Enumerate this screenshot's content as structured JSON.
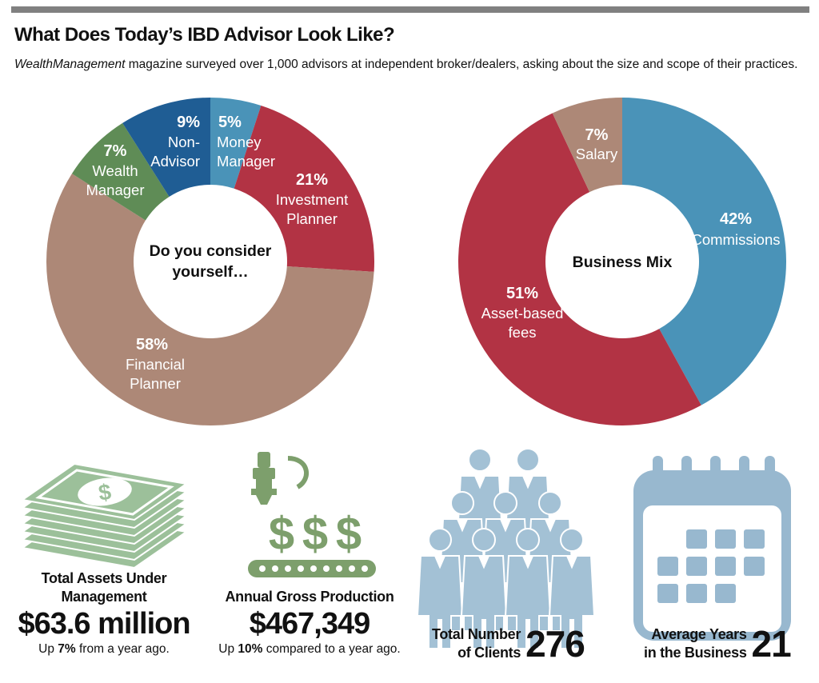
{
  "header": {
    "title": "What Does Today’s IBD Advisor Look Like?",
    "subtitle_italic": "WealthManagement",
    "subtitle_rest": " magazine surveyed over 1,000 advisors at independent broker/dealers, asking about the size and scope of their practices."
  },
  "chart_data": [
    {
      "type": "pie",
      "title": "Do you consider yourself…",
      "unit": "%",
      "slices": [
        {
          "label": "Money Manager",
          "value": 5,
          "color": "#4a93b8"
        },
        {
          "label": "Investment Planner",
          "value": 21,
          "color": "#b23344"
        },
        {
          "label": "Financial Planner",
          "value": 58,
          "color": "#ad8877"
        },
        {
          "label": "Wealth Manager",
          "value": 7,
          "color": "#5f8c56"
        },
        {
          "label": "Non-Advisor",
          "value": 9,
          "color": "#1f5d94"
        }
      ]
    },
    {
      "type": "pie",
      "title": "Business Mix",
      "unit": "%",
      "slices": [
        {
          "label": "Commissions",
          "value": 42,
          "color": "#4a93b8"
        },
        {
          "label": "Asset-based fees",
          "value": 51,
          "color": "#b23344"
        },
        {
          "label": "Salary",
          "value": 7,
          "color": "#ad8877"
        }
      ]
    }
  ],
  "labels": {
    "d1": {
      "money": {
        "pct": "5%",
        "line1": "Money",
        "line2": "Manager"
      },
      "invest": {
        "pct": "21%",
        "line1": "Investment",
        "line2": "Planner"
      },
      "fin": {
        "pct": "58%",
        "line1": "Financial",
        "line2": "Planner"
      },
      "wealth": {
        "pct": "7%",
        "line1": "Wealth",
        "line2": "Manager"
      },
      "non": {
        "pct": "9%",
        "line1": "Non-",
        "line2": "Advisor"
      },
      "center1": "Do you consider",
      "center2": "yourself…"
    },
    "d2": {
      "comm": {
        "pct": "42%",
        "line1": "Commissions"
      },
      "asset": {
        "pct": "51%",
        "line1": "Asset-based",
        "line2": "fees"
      },
      "salary": {
        "pct": "7%",
        "line1": "Salary"
      },
      "center1": "Business Mix"
    }
  },
  "stats": {
    "aum": {
      "label1": "Total Assets Under",
      "label2": "Management",
      "value": "$63.6 million",
      "note_pre": "Up ",
      "note_bold": "7%",
      "note_post": " from a year ago."
    },
    "gross": {
      "label": "Annual Gross Production",
      "value": "$467,349",
      "note_pre": "Up ",
      "note_bold": "10%",
      "note_post": " compared to a year ago."
    },
    "clients": {
      "label1": "Total Number",
      "label2": "of Clients",
      "value": "276"
    },
    "years": {
      "label1": "Average Years",
      "label2": "in the Business",
      "value": "21"
    }
  },
  "colors": {
    "money_green": "#9cc09a",
    "production_green": "#7d9f6c",
    "people_blue": "#a3c1d5",
    "calendar_blue": "#98b8cf"
  },
  "icons": [
    "money-stack-icon",
    "production-machine-icon",
    "people-group-icon",
    "calendar-icon"
  ]
}
